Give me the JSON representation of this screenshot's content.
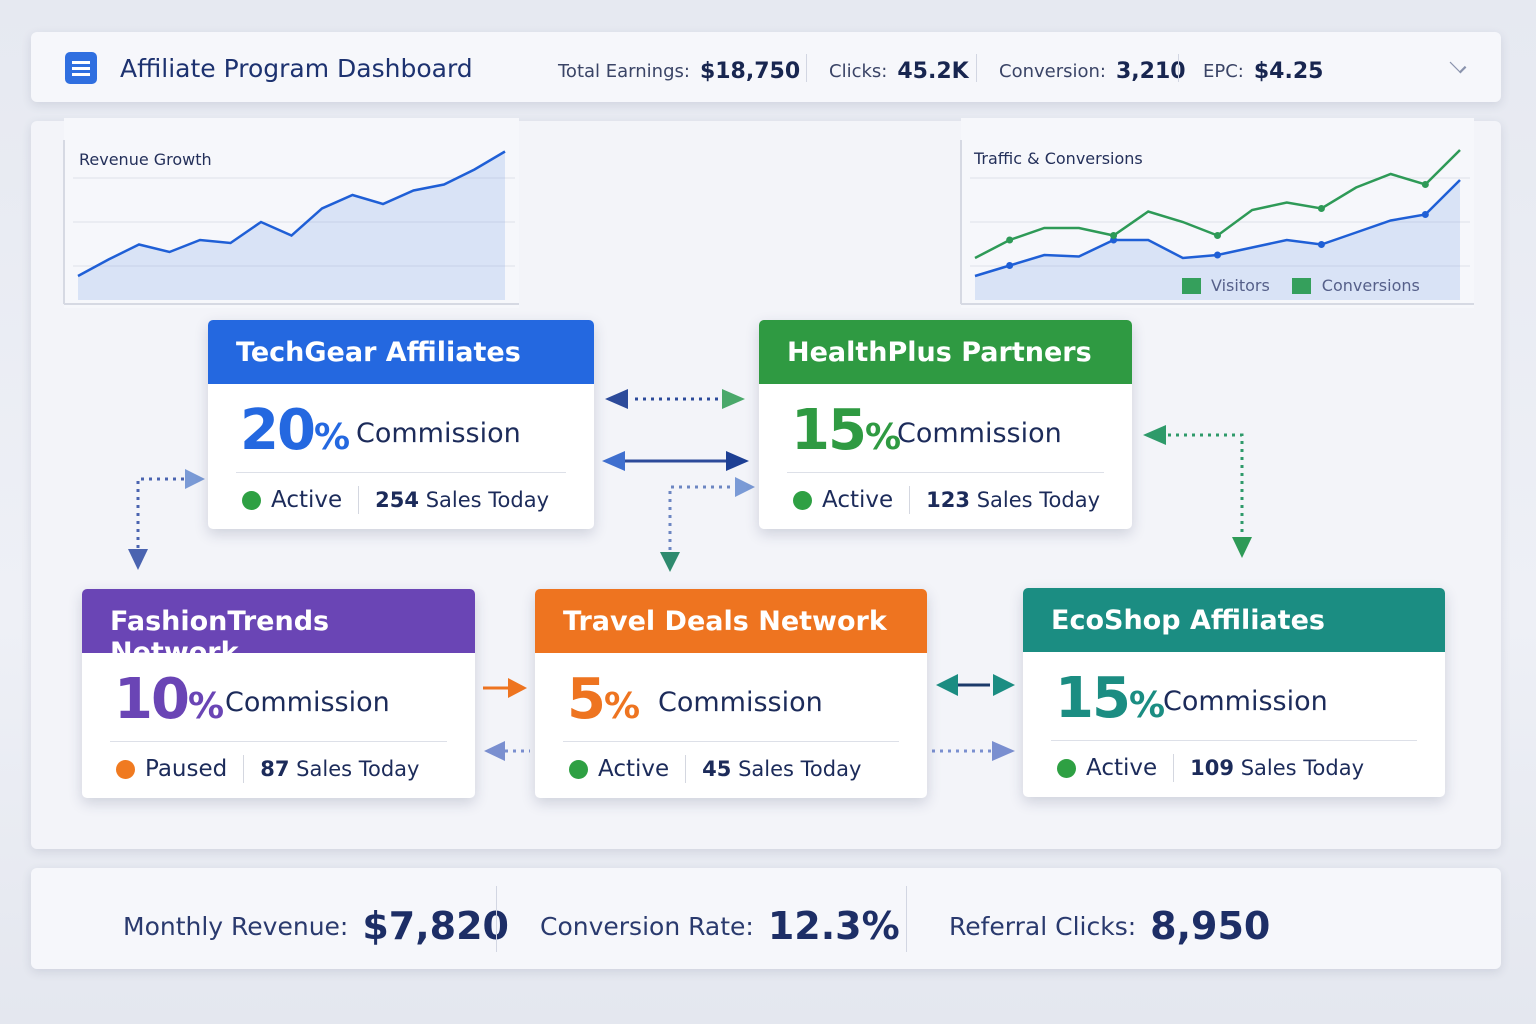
{
  "header": {
    "title": "Affiliate Program Dashboard",
    "icon": "clipboard-list-icon",
    "stats": [
      {
        "label": "Total Earnings:",
        "value": "$18,750"
      },
      {
        "label": "Clicks:",
        "value": "45.2K"
      },
      {
        "label": "Conversion:",
        "value": "3,210"
      },
      {
        "label": "EPC:",
        "value": "$4.25"
      }
    ]
  },
  "chart_data": [
    {
      "type": "area",
      "title": "Revenue Growth",
      "series": [
        {
          "values": [
            16,
            27,
            37,
            32,
            40,
            38,
            52,
            43,
            61,
            70,
            64,
            73,
            77,
            87,
            99
          ],
          "color": "#1f5fd6"
        }
      ]
    },
    {
      "type": "line",
      "title": "Traffic & Conversions",
      "legend": [
        "Visitors",
        "Conversions"
      ],
      "legend_position": "bottom-right",
      "series": [
        {
          "name": "Visitors",
          "values": [
            16,
            23,
            30,
            29,
            40,
            40,
            28,
            30,
            35,
            40,
            37,
            45,
            53,
            57,
            80
          ],
          "color": "#1f5fd6"
        },
        {
          "name": "Conversions",
          "values": [
            28,
            40,
            48,
            48,
            43,
            59,
            52,
            43,
            60,
            65,
            61,
            75,
            84,
            77,
            100
          ],
          "color": "#2e9a57"
        }
      ]
    }
  ],
  "networks": [
    {
      "name": "TechGear Affiliates",
      "commission": "20",
      "unit": "%",
      "label": "Commission",
      "status": "Active",
      "sales": "254",
      "sales_label": "Sales Today",
      "color": "#2468e0",
      "status_color": "#2ea043"
    },
    {
      "name": "HealthPlus Partners",
      "commission": "15",
      "unit": "%",
      "label": "Commission",
      "status": "Active",
      "sales": "123",
      "sales_label": "Sales Today",
      "color": "#2f9a42",
      "status_color": "#2ea043"
    },
    {
      "name": "FashionTrends Network",
      "commission": "10",
      "unit": "%",
      "label": "Commission",
      "status": "Paused",
      "sales": "87",
      "sales_label": "Sales Today",
      "color": "#6a45b5",
      "status_color": "#f07a20"
    },
    {
      "name": "Travel Deals Network",
      "commission": "5",
      "unit": "%",
      "label": "Commission",
      "status": "Active",
      "sales": "45",
      "sales_label": "Sales Today",
      "color": "#ee7420",
      "status_color": "#2ea043"
    },
    {
      "name": "EcoShop Affiliates",
      "commission": "15",
      "unit": "%",
      "label": "Commission",
      "status": "Active",
      "sales": "109",
      "sales_label": "Sales Today",
      "color": "#1b8d82",
      "status_color": "#2ea043"
    }
  ],
  "footer": [
    {
      "label": "Monthly Revenue:",
      "value": "$7,820"
    },
    {
      "label": "Conversion Rate:",
      "value": "12.3%"
    },
    {
      "label": "Referral Clicks:",
      "value": "8,950"
    }
  ]
}
